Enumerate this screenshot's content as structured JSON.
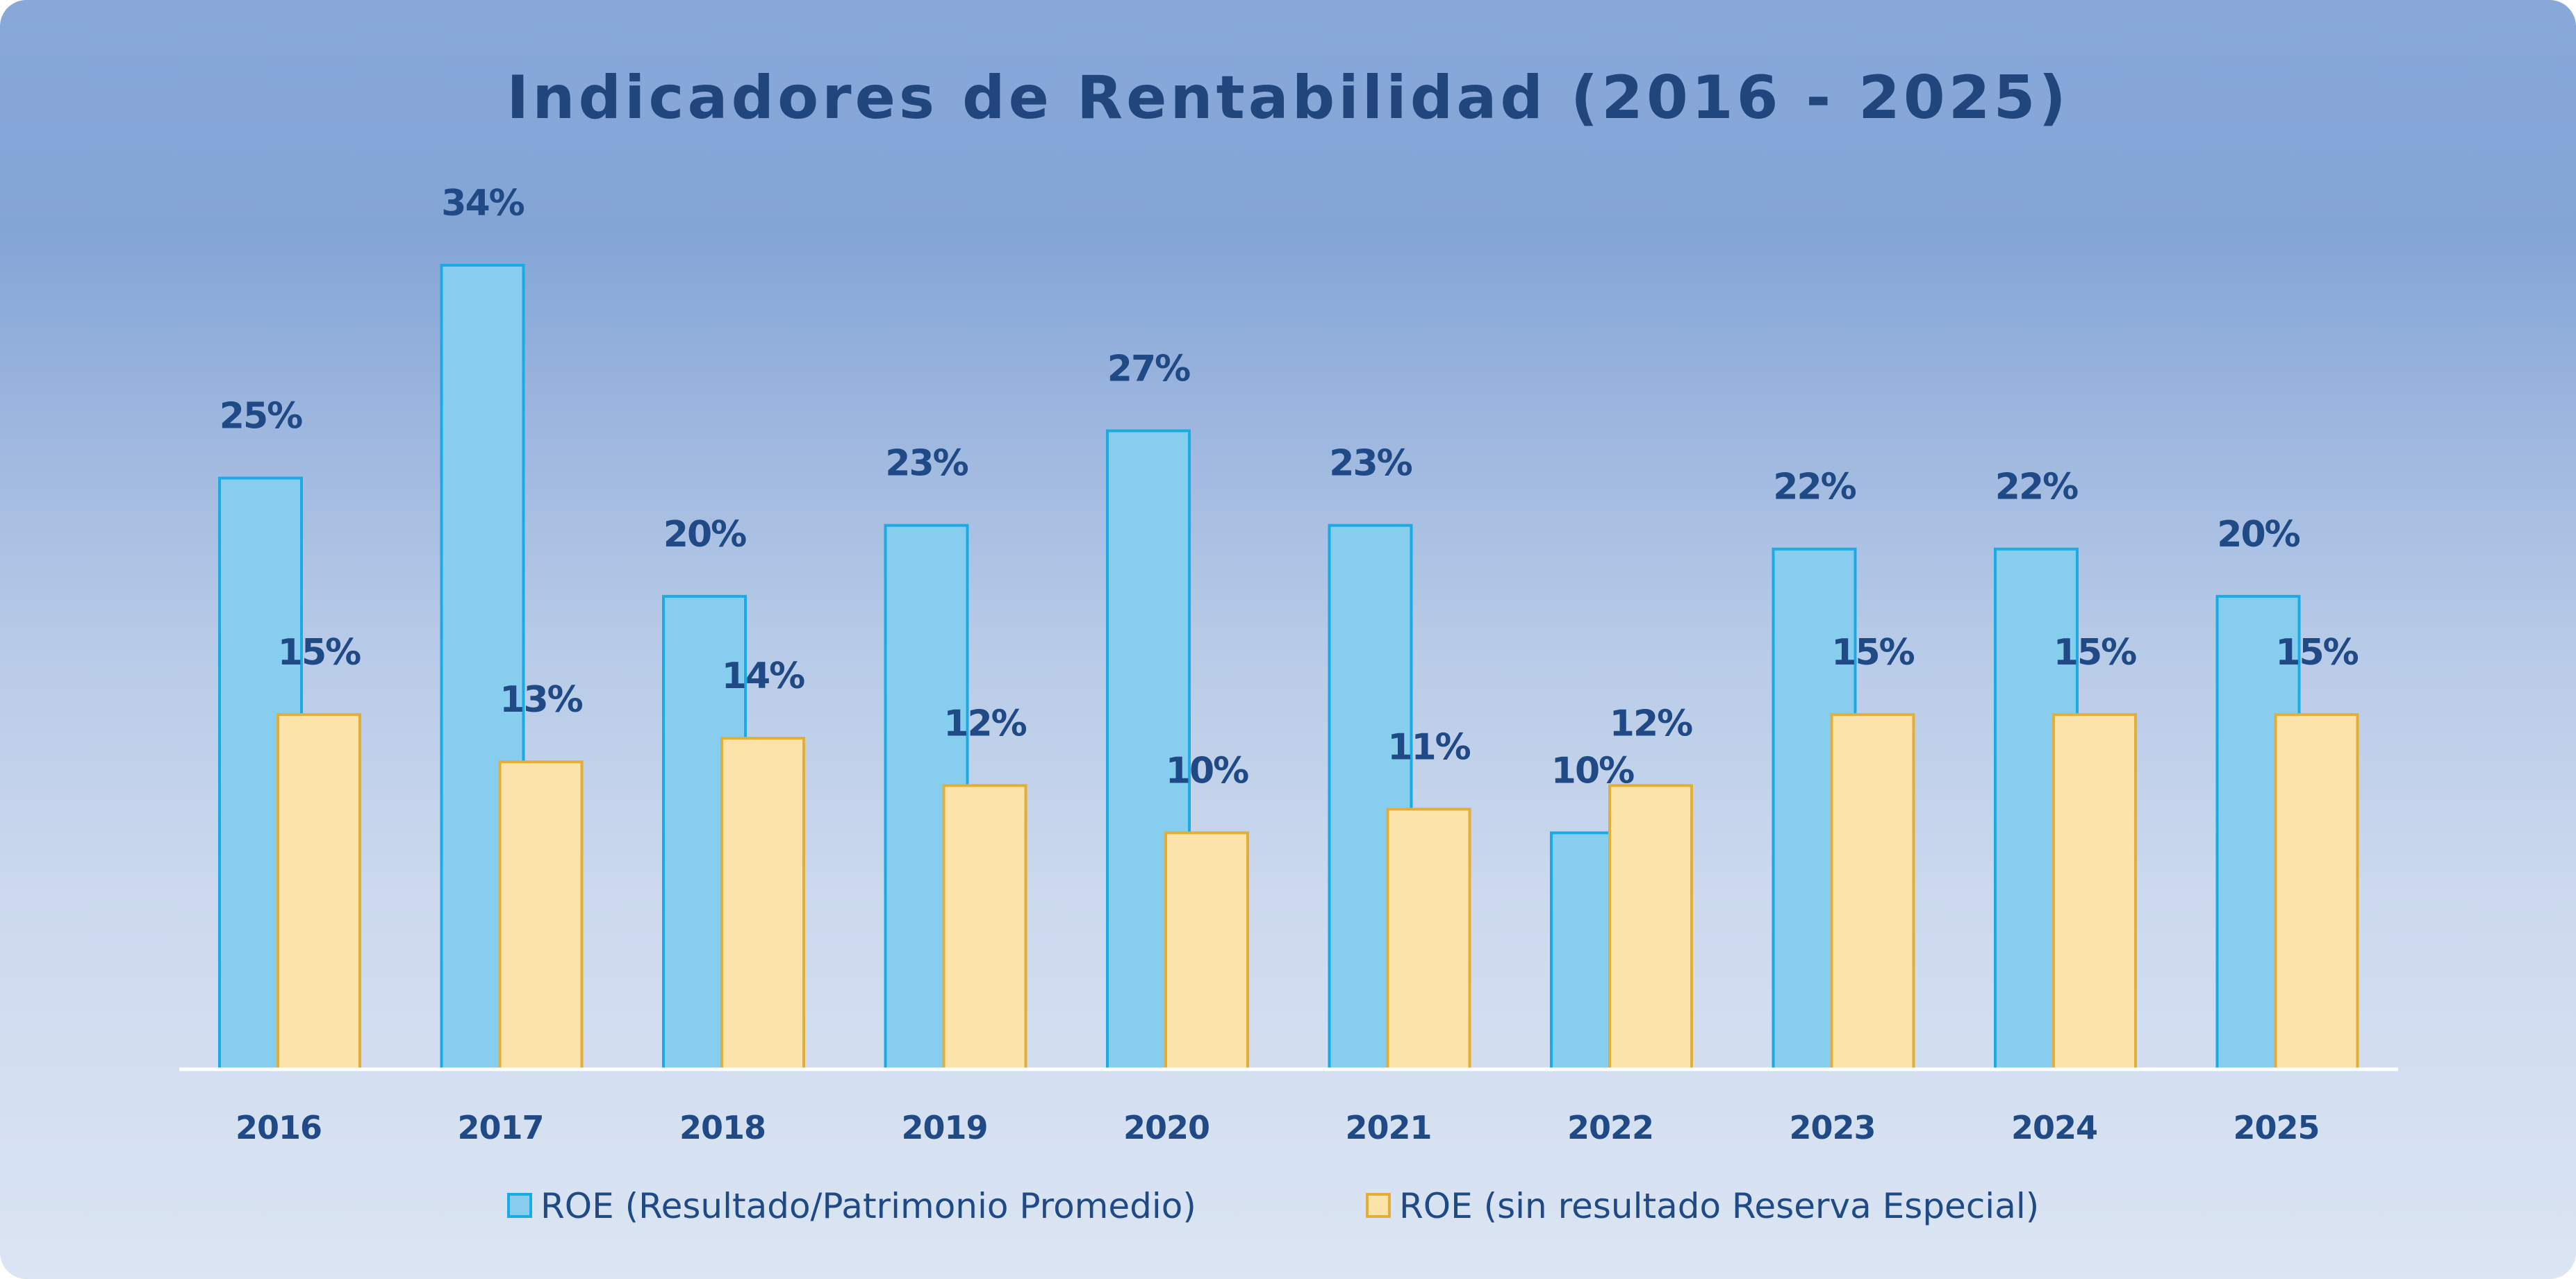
{
  "colors": {
    "roe_fill": "#86cdee",
    "roe_stroke": "#1aaae6",
    "roe_sin_fill": "#fbe3aa",
    "roe_sin_stroke": "#e2ae37",
    "axis": "#ffffff",
    "text": "#1f4a85"
  },
  "chart_data": {
    "type": "bar",
    "title": "Indicadores de Rentabilidad (2016 - 2025)",
    "categories": [
      "2016",
      "2017",
      "2018",
      "2019",
      "2020",
      "2021",
      "2022",
      "2023",
      "2024",
      "2025"
    ],
    "series": [
      {
        "name": "ROE (Resultado/Patrimonio Promedio)",
        "values": [
          25,
          34,
          20,
          23,
          27,
          23,
          10,
          22,
          22,
          20
        ],
        "labels": [
          "25%",
          "34%",
          "20%",
          "23%",
          "27%",
          "23%",
          "10%",
          "22%",
          "22%",
          "20%"
        ]
      },
      {
        "name": "ROE (sin resultado Reserva Especial)",
        "values": [
          15,
          13,
          14,
          12,
          10,
          11,
          12,
          15,
          15,
          15
        ],
        "labels": [
          "15%",
          "13%",
          "14%",
          "12%",
          "10%",
          "11%",
          "12%",
          "15%",
          "15%",
          "15%"
        ]
      }
    ],
    "xlabel": "",
    "ylabel": "",
    "ylim": [
      0,
      35
    ],
    "grid": false,
    "legend_position": "bottom-center"
  }
}
